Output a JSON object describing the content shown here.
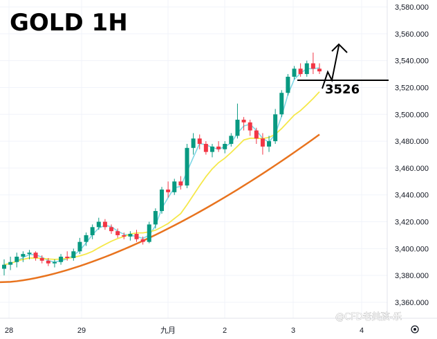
{
  "chart_data": {
    "type": "candlestick",
    "title": "GOLD 1H",
    "annotation": "3526",
    "watermark": "@CFD老美孩-乐",
    "y_ticks": [
      "3,580.000",
      "3,560.000",
      "3,540.000",
      "3,520.000",
      "3,500.000",
      "3,480.000",
      "3,460.000",
      "3,440.000",
      "3,420.000",
      "3,400.000",
      "3,380.000",
      "3,360.000"
    ],
    "ylim": [
      3360,
      3580
    ],
    "x_ticks": [
      "28",
      "29",
      "九月",
      "2",
      "3",
      "4"
    ],
    "grid": true,
    "colors": {
      "up": "#089981",
      "down": "#f23645",
      "fast_ma": "#7fd8e6",
      "mid_ma": "#f5e84a",
      "slow_ma": "#e8731e",
      "marks": "#000000"
    },
    "candles": [
      [
        3385,
        3392,
        3380,
        3388
      ],
      [
        3388,
        3394,
        3384,
        3390
      ],
      [
        3390,
        3397,
        3386,
        3394
      ],
      [
        3394,
        3398,
        3390,
        3396
      ],
      [
        3396,
        3399,
        3392,
        3397
      ],
      [
        3397,
        3398,
        3391,
        3393
      ],
      [
        3393,
        3395,
        3389,
        3391
      ],
      [
        3391,
        3393,
        3387,
        3389
      ],
      [
        3389,
        3392,
        3386,
        3390
      ],
      [
        3390,
        3396,
        3388,
        3394
      ],
      [
        3394,
        3398,
        3391,
        3393
      ],
      [
        3393,
        3400,
        3391,
        3398
      ],
      [
        3398,
        3408,
        3396,
        3405
      ],
      [
        3405,
        3412,
        3402,
        3410
      ],
      [
        3410,
        3418,
        3407,
        3416
      ],
      [
        3416,
        3423,
        3414,
        3420
      ],
      [
        3420,
        3422,
        3414,
        3416
      ],
      [
        3416,
        3418,
        3411,
        3413
      ],
      [
        3413,
        3415,
        3408,
        3410
      ],
      [
        3410,
        3412,
        3407,
        3409
      ],
      [
        3409,
        3413,
        3406,
        3411
      ],
      [
        3411,
        3414,
        3405,
        3407
      ],
      [
        3407,
        3409,
        3403,
        3405
      ],
      [
        3405,
        3420,
        3404,
        3418
      ],
      [
        3418,
        3430,
        3415,
        3428
      ],
      [
        3428,
        3446,
        3426,
        3444
      ],
      [
        3444,
        3450,
        3438,
        3442
      ],
      [
        3442,
        3452,
        3440,
        3450
      ],
      [
        3450,
        3454,
        3444,
        3447
      ],
      [
        3447,
        3478,
        3445,
        3475
      ],
      [
        3475,
        3486,
        3470,
        3482
      ],
      [
        3482,
        3485,
        3474,
        3478
      ],
      [
        3478,
        3480,
        3470,
        3472
      ],
      [
        3472,
        3478,
        3468,
        3476
      ],
      [
        3476,
        3480,
        3472,
        3474
      ],
      [
        3474,
        3480,
        3471,
        3478
      ],
      [
        3478,
        3486,
        3476,
        3484
      ],
      [
        3484,
        3508,
        3482,
        3496
      ],
      [
        3496,
        3498,
        3488,
        3494
      ],
      [
        3494,
        3496,
        3484,
        3488
      ],
      [
        3488,
        3490,
        3478,
        3482
      ],
      [
        3482,
        3486,
        3470,
        3476
      ],
      [
        3476,
        3484,
        3472,
        3480
      ],
      [
        3480,
        3504,
        3478,
        3500
      ],
      [
        3500,
        3518,
        3498,
        3516
      ],
      [
        3516,
        3530,
        3514,
        3528
      ],
      [
        3528,
        3536,
        3526,
        3534
      ],
      [
        3534,
        3538,
        3528,
        3530
      ],
      [
        3530,
        3540,
        3528,
        3538
      ],
      [
        3538,
        3546,
        3530,
        3534
      ],
      [
        3534,
        3538,
        3530,
        3532
      ]
    ]
  }
}
